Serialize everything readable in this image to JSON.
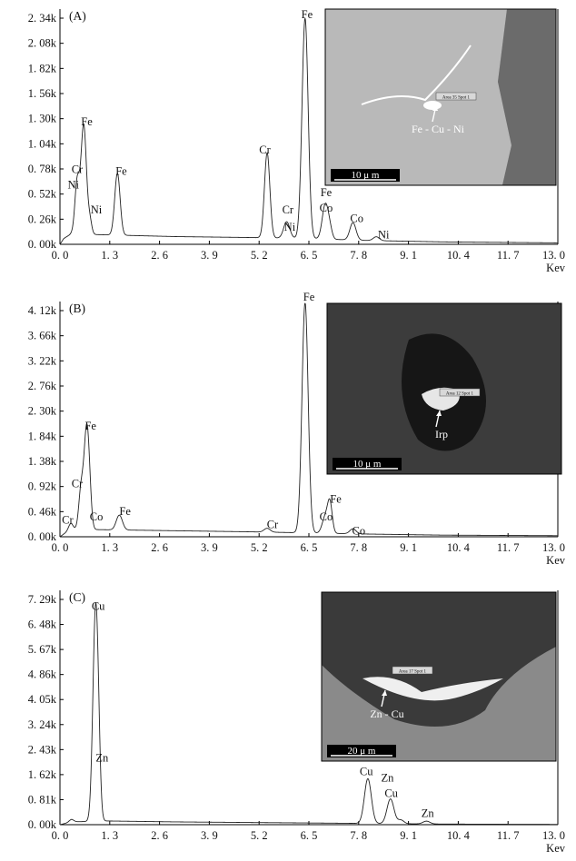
{
  "colors": {
    "axis": "#000000",
    "line": "#222222",
    "micrograph_dark": "#3a3a3a",
    "micrograph_light": "#cfcfcf"
  },
  "chart_data": [
    {
      "type": "line",
      "panel": "(A)",
      "x_unit": "Kev",
      "xlim": [
        0,
        13.0
      ],
      "ylim": [
        0,
        2340
      ],
      "x_ticks": [
        "0. 0",
        "1. 3",
        "2. 6",
        "3. 9",
        "5. 2",
        "6. 5",
        "7. 8",
        "9. 1",
        "10. 4",
        "11. 7",
        "13. 0"
      ],
      "y_ticks": [
        "0. 00k",
        "0. 26k",
        "0. 52k",
        "0. 78k",
        "1. 04k",
        "1. 30k",
        "1. 56k",
        "1. 82k",
        "2. 08k",
        "2. 34k"
      ],
      "baseline": [
        [
          0.1,
          60
        ],
        [
          0.3,
          110
        ],
        [
          1.0,
          100
        ],
        [
          3.0,
          80
        ],
        [
          5.0,
          70
        ],
        [
          6.5,
          60
        ],
        [
          8.0,
          40
        ],
        [
          10.0,
          25
        ],
        [
          13.0,
          15
        ]
      ],
      "peaks": [
        {
          "x": 0.45,
          "y": 540,
          "w": 0.06
        },
        {
          "x": 0.62,
          "y": 1130,
          "w": 0.07
        },
        {
          "x": 0.78,
          "y": 140,
          "w": 0.05
        },
        {
          "x": 1.5,
          "y": 640,
          "w": 0.07
        },
        {
          "x": 5.41,
          "y": 880,
          "w": 0.07
        },
        {
          "x": 5.92,
          "y": 170,
          "w": 0.08
        },
        {
          "x": 6.4,
          "y": 2280,
          "w": 0.08
        },
        {
          "x": 6.93,
          "y": 360,
          "w": 0.08
        },
        {
          "x": 7.05,
          "y": 80,
          "w": 0.06
        },
        {
          "x": 7.65,
          "y": 180,
          "w": 0.08
        },
        {
          "x": 8.26,
          "y": 40,
          "w": 0.08
        }
      ],
      "labels": [
        {
          "text": "Cr",
          "x": 0.45,
          "y": 740
        },
        {
          "text": "Ni",
          "x": 0.35,
          "y": 580
        },
        {
          "text": "Fe",
          "x": 0.7,
          "y": 1230
        },
        {
          "text": "Ni",
          "x": 0.95,
          "y": 320
        },
        {
          "text": "Fe",
          "x": 1.6,
          "y": 720
        },
        {
          "text": "Cr",
          "x": 5.35,
          "y": 940
        },
        {
          "text": "Cr",
          "x": 5.95,
          "y": 320
        },
        {
          "text": "Ni",
          "x": 6.0,
          "y": 140
        },
        {
          "text": "Fe",
          "x": 6.45,
          "y": 2340
        },
        {
          "text": "Fe",
          "x": 6.95,
          "y": 500
        },
        {
          "text": "Co",
          "x": 6.95,
          "y": 340
        },
        {
          "text": "Co",
          "x": 7.75,
          "y": 230
        },
        {
          "text": "Ni",
          "x": 8.45,
          "y": 60
        }
      ],
      "inset": {
        "caption": "Fe - Cu - Ni",
        "scale_bar": "10 μ m",
        "tag": "Area 35 Spot 1"
      }
    },
    {
      "type": "line",
      "panel": "(B)",
      "x_unit": "Kev",
      "xlim": [
        0,
        13.0
      ],
      "ylim": [
        0,
        4120
      ],
      "x_ticks": [
        "0. 0",
        "1. 3",
        "2. 6",
        "3. 9",
        "5. 2",
        "6. 5",
        "7. 8",
        "9. 1",
        "10. 4",
        "11. 7",
        "13. 0"
      ],
      "y_ticks": [
        "0. 00k",
        "0. 46k",
        "0. 92k",
        "1. 38k",
        "1. 84k",
        "2. 30k",
        "2. 76k",
        "3. 22k",
        "3. 66k",
        "4. 12k"
      ],
      "baseline": [
        [
          0.1,
          50
        ],
        [
          0.3,
          130
        ],
        [
          1.0,
          130
        ],
        [
          3.0,
          110
        ],
        [
          5.0,
          90
        ],
        [
          6.5,
          70
        ],
        [
          8.0,
          50
        ],
        [
          10.0,
          30
        ],
        [
          13.0,
          20
        ]
      ],
      "peaks": [
        {
          "x": 0.28,
          "y": 120,
          "w": 0.06
        },
        {
          "x": 0.55,
          "y": 700,
          "w": 0.06
        },
        {
          "x": 0.7,
          "y": 1850,
          "w": 0.07
        },
        {
          "x": 0.78,
          "y": 180,
          "w": 0.05
        },
        {
          "x": 1.55,
          "y": 270,
          "w": 0.08
        },
        {
          "x": 5.41,
          "y": 70,
          "w": 0.08
        },
        {
          "x": 6.4,
          "y": 4200,
          "w": 0.08
        },
        {
          "x": 6.93,
          "y": 300,
          "w": 0.08
        },
        {
          "x": 7.05,
          "y": 520,
          "w": 0.06
        },
        {
          "x": 7.65,
          "y": 90,
          "w": 0.08
        }
      ],
      "labels": [
        {
          "text": "Cr",
          "x": 0.2,
          "y": 240
        },
        {
          "text": "Cr",
          "x": 0.45,
          "y": 900
        },
        {
          "text": "Co",
          "x": 0.95,
          "y": 300
        },
        {
          "text": "Fe",
          "x": 0.8,
          "y": 1950
        },
        {
          "text": "Fe",
          "x": 1.7,
          "y": 400
        },
        {
          "text": "Cr",
          "x": 5.55,
          "y": 160
        },
        {
          "text": "Fe",
          "x": 6.5,
          "y": 4300
        },
        {
          "text": "Fe",
          "x": 7.2,
          "y": 620
        },
        {
          "text": "Co",
          "x": 6.95,
          "y": 300
        },
        {
          "text": "Co",
          "x": 7.8,
          "y": 40
        }
      ],
      "inset": {
        "caption": "Irp",
        "scale_bar": "10 μ m",
        "tag": "Area 12 Spot 1"
      }
    },
    {
      "type": "line",
      "panel": "(C)",
      "x_unit": "Kev",
      "xlim": [
        0,
        13.0
      ],
      "ylim": [
        0,
        7290
      ],
      "x_ticks": [
        "0. 0",
        "1. 3",
        "2. 6",
        "3. 9",
        "5. 2",
        "6. 5",
        "7. 8",
        "9. 1",
        "10. 4",
        "11. 7",
        "13. 0"
      ],
      "y_ticks": [
        "0. 00k",
        "0. 81k",
        "1. 62k",
        "2. 43k",
        "3. 24k",
        "4. 05k",
        "4. 86k",
        "5. 67k",
        "6. 48k",
        "7. 29k"
      ],
      "baseline": [
        [
          0.1,
          30
        ],
        [
          0.3,
          90
        ],
        [
          1.2,
          120
        ],
        [
          3.0,
          90
        ],
        [
          5.0,
          70
        ],
        [
          7.0,
          50
        ],
        [
          8.0,
          40
        ],
        [
          10.0,
          20
        ],
        [
          13.0,
          10
        ]
      ],
      "peaks": [
        {
          "x": 0.3,
          "y": 80,
          "w": 0.06
        },
        {
          "x": 0.93,
          "y": 6800,
          "w": 0.07
        },
        {
          "x": 1.01,
          "y": 900,
          "w": 0.05
        },
        {
          "x": 8.04,
          "y": 1450,
          "w": 0.09
        },
        {
          "x": 8.63,
          "y": 800,
          "w": 0.09
        },
        {
          "x": 8.9,
          "y": 120,
          "w": 0.08
        },
        {
          "x": 9.57,
          "y": 90,
          "w": 0.09
        }
      ],
      "labels": [
        {
          "text": "Cu",
          "x": 1.0,
          "y": 6950
        },
        {
          "text": "Zn",
          "x": 1.1,
          "y": 2050
        },
        {
          "text": "Cu",
          "x": 8.0,
          "y": 1600
        },
        {
          "text": "Zn",
          "x": 8.55,
          "y": 1400
        },
        {
          "text": "Cu",
          "x": 8.65,
          "y": 900
        },
        {
          "text": "Zn",
          "x": 9.6,
          "y": 250
        }
      ],
      "inset": {
        "caption": "Zn - Cu",
        "scale_bar": "20 μ m",
        "tag": "Area 17 Spot 1"
      }
    }
  ]
}
